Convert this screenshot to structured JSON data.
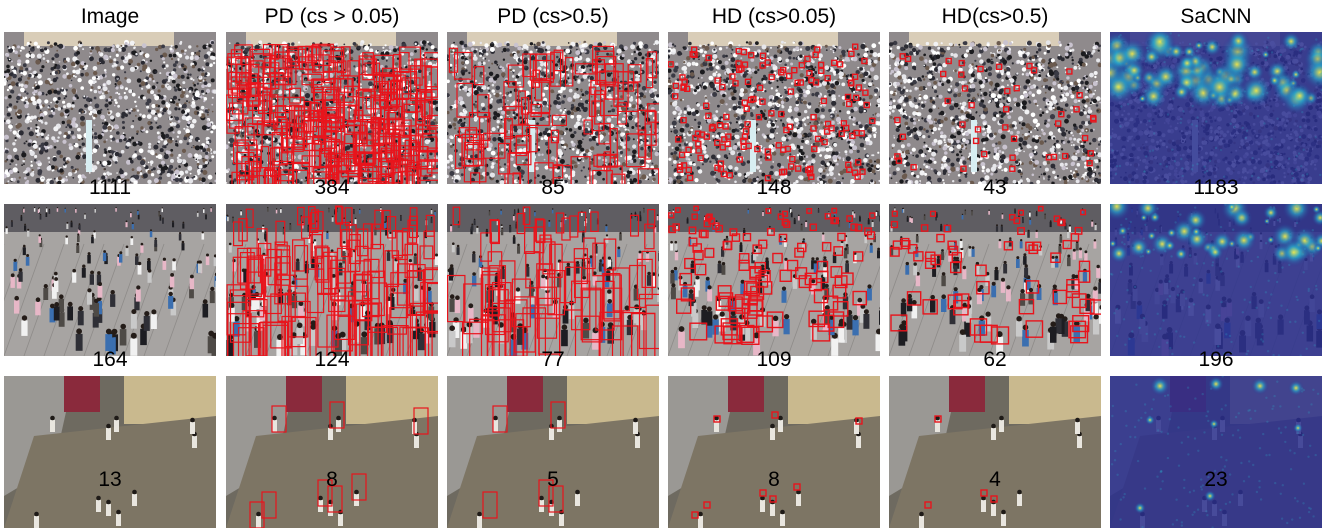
{
  "columns": [
    "Image",
    "PD (cs > 0.05)",
    "PD (cs>0.5)",
    "HD (cs>0.05)",
    "HD(cs>0.5)",
    "SaCNN"
  ],
  "rows": [
    {
      "scene": "dense",
      "counts": [
        "1111",
        "384",
        "85",
        "148",
        "43",
        "1183"
      ]
    },
    {
      "scene": "medium",
      "counts": [
        "164",
        "124",
        "77",
        "109",
        "62",
        "196"
      ]
    },
    {
      "scene": "sparse",
      "counts": [
        "13",
        "8",
        "5",
        "8",
        "4",
        "23"
      ]
    }
  ],
  "colors": {
    "detection_box": "#e8141c",
    "density_low": "#2a2f8e",
    "density_mid": "#2aa6c9",
    "density_high": "#f2e84b"
  }
}
